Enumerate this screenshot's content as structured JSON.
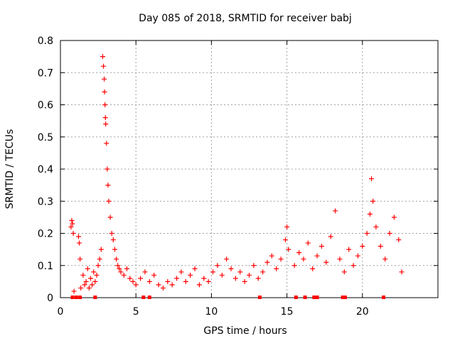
{
  "chart_data": {
    "type": "scatter",
    "title": "Day 085 of 2018, SRMTID for receiver babj",
    "xlabel": "GPS time / hours",
    "ylabel": "SRMTID / TECUs",
    "xlim": [
      0,
      25
    ],
    "ylim": [
      0,
      0.8
    ],
    "xticks": [
      0,
      5,
      10,
      15,
      20
    ],
    "yticks": [
      0,
      0.1,
      0.2,
      0.3,
      0.4,
      0.5,
      0.6,
      0.7,
      0.8
    ],
    "xtick_labels": [
      "0",
      "5",
      "10",
      "15",
      "20"
    ],
    "ytick_labels": [
      "0",
      "0.1",
      "0.2",
      "0.3",
      "0.4",
      "0.5",
      "0.6",
      "0.7",
      "0.8"
    ],
    "grid": true,
    "marker": "+",
    "series": [
      {
        "name": "SRMTID",
        "color": "#ff0000",
        "x": [
          0.7,
          0.75,
          0.8,
          0.85,
          0.9,
          1.2,
          1.25,
          1.3,
          1.35,
          1.5,
          1.6,
          1.7,
          1.8,
          1.9,
          2.0,
          2.1,
          2.2,
          2.3,
          2.4,
          2.5,
          2.6,
          2.7,
          2.8,
          2.85,
          2.9,
          2.92,
          2.95,
          2.98,
          3.0,
          3.05,
          3.1,
          3.15,
          3.2,
          3.3,
          3.4,
          3.5,
          3.6,
          3.7,
          3.8,
          3.9,
          4.0,
          4.2,
          4.4,
          4.6,
          4.8,
          5.0,
          5.3,
          5.6,
          5.9,
          6.2,
          6.5,
          6.8,
          7.1,
          7.4,
          7.7,
          8.0,
          8.3,
          8.6,
          8.9,
          9.2,
          9.5,
          9.8,
          10.1,
          10.4,
          10.7,
          11.0,
          11.3,
          11.6,
          11.9,
          12.2,
          12.5,
          12.8,
          13.1,
          13.4,
          13.7,
          14.0,
          14.3,
          14.6,
          14.9,
          15.0,
          15.1,
          15.5,
          15.8,
          16.1,
          16.4,
          16.7,
          17.0,
          17.3,
          17.6,
          17.9,
          18.2,
          18.5,
          18.8,
          19.1,
          19.4,
          19.7,
          20.0,
          20.3,
          20.5,
          20.6,
          20.7,
          20.9,
          21.2,
          21.5,
          21.8,
          22.1,
          22.4,
          22.6
        ],
        "y": [
          0.22,
          0.24,
          0.23,
          0.2,
          0.02,
          0.19,
          0.17,
          0.12,
          0.03,
          0.07,
          0.04,
          0.05,
          0.09,
          0.03,
          0.06,
          0.04,
          0.08,
          0.05,
          0.07,
          0.1,
          0.12,
          0.15,
          0.75,
          0.72,
          0.68,
          0.64,
          0.6,
          0.56,
          0.54,
          0.48,
          0.4,
          0.35,
          0.3,
          0.25,
          0.2,
          0.18,
          0.15,
          0.12,
          0.1,
          0.09,
          0.08,
          0.07,
          0.09,
          0.06,
          0.05,
          0.04,
          0.06,
          0.08,
          0.05,
          0.07,
          0.04,
          0.03,
          0.05,
          0.04,
          0.06,
          0.08,
          0.05,
          0.07,
          0.09,
          0.04,
          0.06,
          0.05,
          0.08,
          0.1,
          0.07,
          0.12,
          0.09,
          0.06,
          0.08,
          0.05,
          0.07,
          0.1,
          0.06,
          0.08,
          0.11,
          0.13,
          0.09,
          0.12,
          0.18,
          0.22,
          0.15,
          0.1,
          0.14,
          0.12,
          0.17,
          0.09,
          0.13,
          0.16,
          0.11,
          0.19,
          0.27,
          0.12,
          0.08,
          0.15,
          0.1,
          0.13,
          0.16,
          0.2,
          0.26,
          0.37,
          0.3,
          0.22,
          0.16,
          0.12,
          0.2,
          0.25,
          0.18,
          0.08
        ]
      }
    ],
    "zero_markers_x": [
      0.8,
      1.05,
      1.3,
      2.3,
      5.5,
      5.9,
      13.2,
      15.6,
      16.2,
      16.8,
      17.0,
      18.7,
      18.85,
      21.4
    ]
  }
}
